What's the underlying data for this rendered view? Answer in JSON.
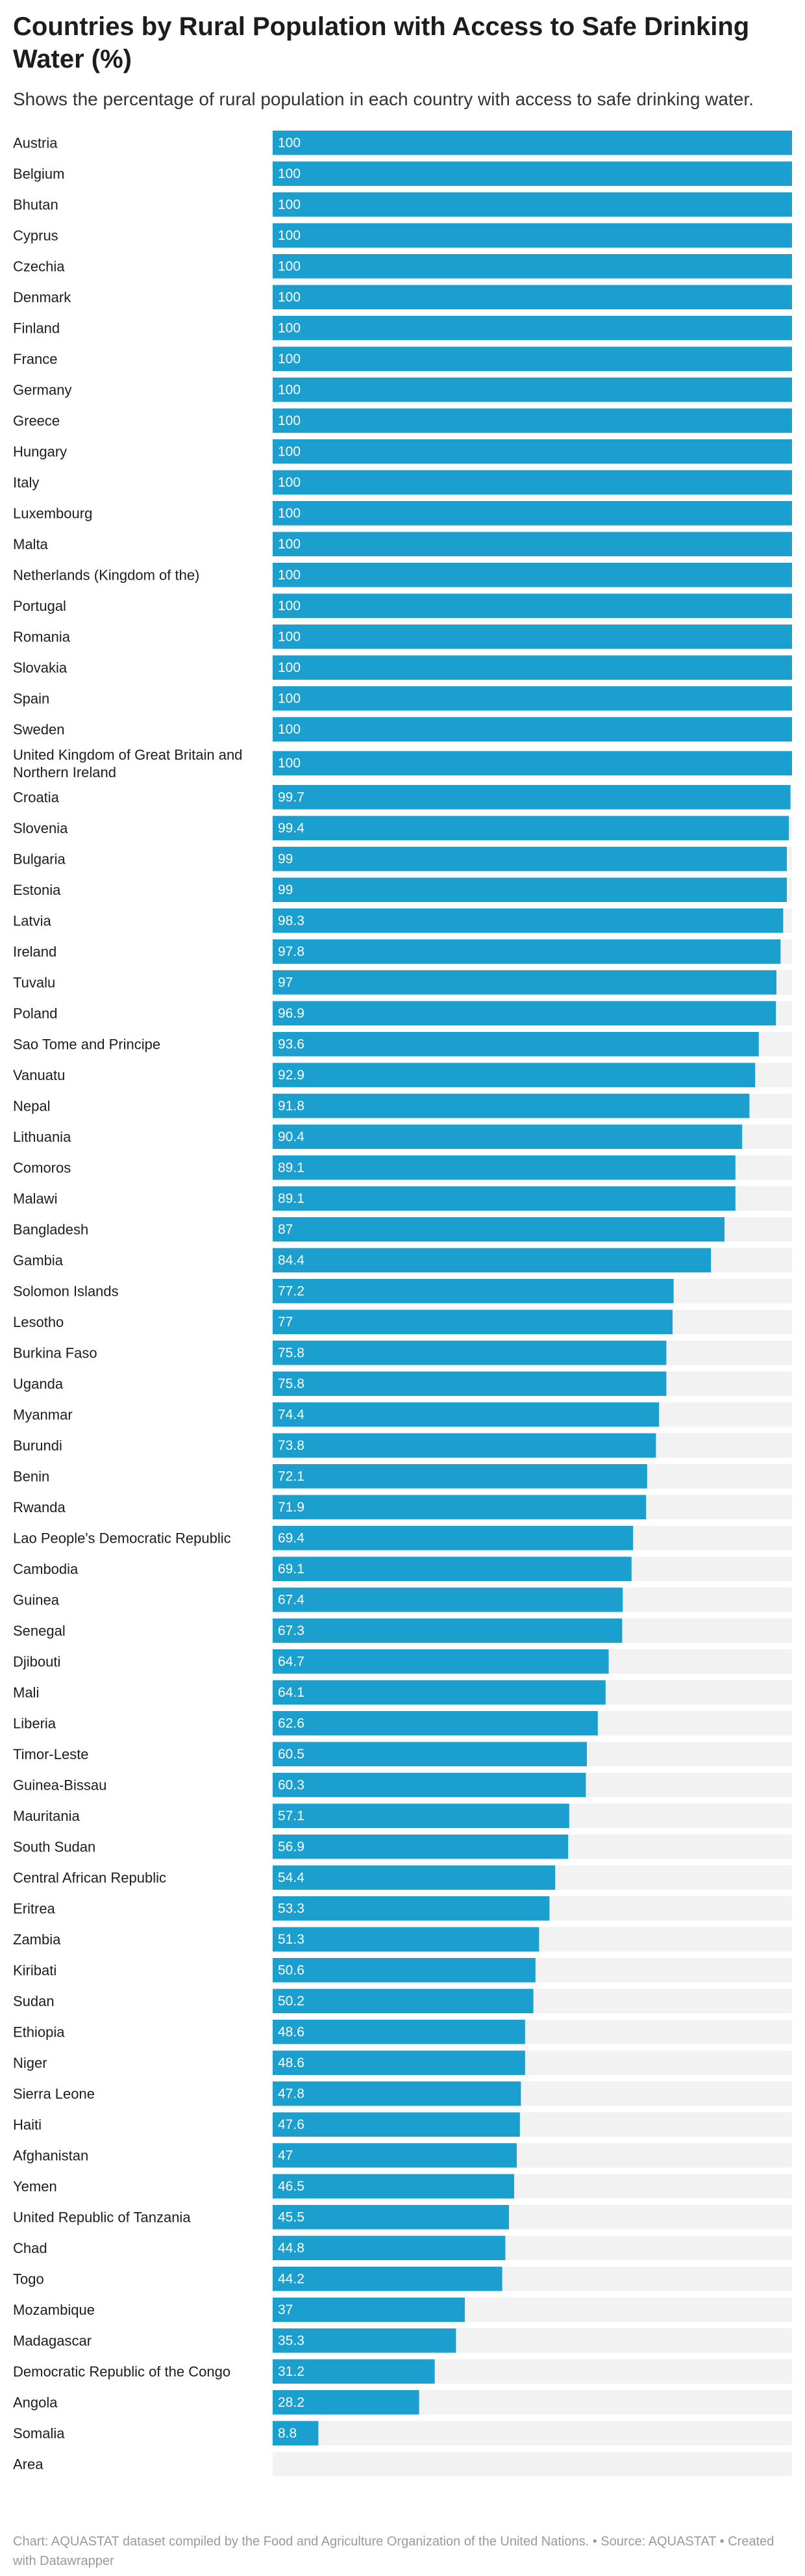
{
  "chart_data": {
    "type": "bar",
    "orientation": "horizontal",
    "title": "Countries by Rural Population with Access to Safe Drinking Water (%)",
    "subtitle": "Shows the percentage of rural population in each country with access to safe drinking water.",
    "xlim": [
      0,
      100
    ],
    "bar_color": "#1a9fce",
    "track_color": "#f2f2f2",
    "value_label_color": "#ffffff",
    "categories": [
      "Austria",
      "Belgium",
      "Bhutan",
      "Cyprus",
      "Czechia",
      "Denmark",
      "Finland",
      "France",
      "Germany",
      "Greece",
      "Hungary",
      "Italy",
      "Luxembourg",
      "Malta",
      "Netherlands (Kingdom of the)",
      "Portugal",
      "Romania",
      "Slovakia",
      "Spain",
      "Sweden",
      "United Kingdom of Great Britain and Northern Ireland",
      "Croatia",
      "Slovenia",
      "Bulgaria",
      "Estonia",
      "Latvia",
      "Ireland",
      "Tuvalu",
      "Poland",
      "Sao Tome and Principe",
      "Vanuatu",
      "Nepal",
      "Lithuania",
      "Comoros",
      "Malawi",
      "Bangladesh",
      "Gambia",
      "Solomon Islands",
      "Lesotho",
      "Burkina Faso",
      "Uganda",
      "Myanmar",
      "Burundi",
      "Benin",
      "Rwanda",
      "Lao People's Democratic Republic",
      "Cambodia",
      "Guinea",
      "Senegal",
      "Djibouti",
      "Mali",
      "Liberia",
      "Timor-Leste",
      "Guinea-Bissau",
      "Mauritania",
      "South Sudan",
      "Central African Republic",
      "Eritrea",
      "Zambia",
      "Kiribati",
      "Sudan",
      "Ethiopia",
      "Niger",
      "Sierra Leone",
      "Haiti",
      "Afghanistan",
      "Yemen",
      "United Republic of Tanzania",
      "Chad",
      "Togo",
      "Mozambique",
      "Madagascar",
      "Democratic Republic of the Congo",
      "Angola",
      "Somalia",
      "Area"
    ],
    "values": [
      100,
      100,
      100,
      100,
      100,
      100,
      100,
      100,
      100,
      100,
      100,
      100,
      100,
      100,
      100,
      100,
      100,
      100,
      100,
      100,
      100,
      99.7,
      99.4,
      99,
      99,
      98.3,
      97.8,
      97,
      96.9,
      93.6,
      92.9,
      91.8,
      90.4,
      89.1,
      89.1,
      87,
      84.4,
      77.2,
      77,
      75.8,
      75.8,
      74.4,
      73.8,
      72.1,
      71.9,
      69.4,
      69.1,
      67.4,
      67.3,
      64.7,
      64.1,
      62.6,
      60.5,
      60.3,
      57.1,
      56.9,
      54.4,
      53.3,
      51.3,
      50.6,
      50.2,
      48.6,
      48.6,
      47.8,
      47.6,
      47,
      46.5,
      45.5,
      44.8,
      44.2,
      37,
      35.3,
      31.2,
      28.2,
      8.8,
      null
    ]
  },
  "footer": {
    "text": "Chart: AQUASTAT dataset compiled by the Food and Agriculture Organization of the United Nations. • Source: AQUASTAT • Created with Datawrapper"
  }
}
